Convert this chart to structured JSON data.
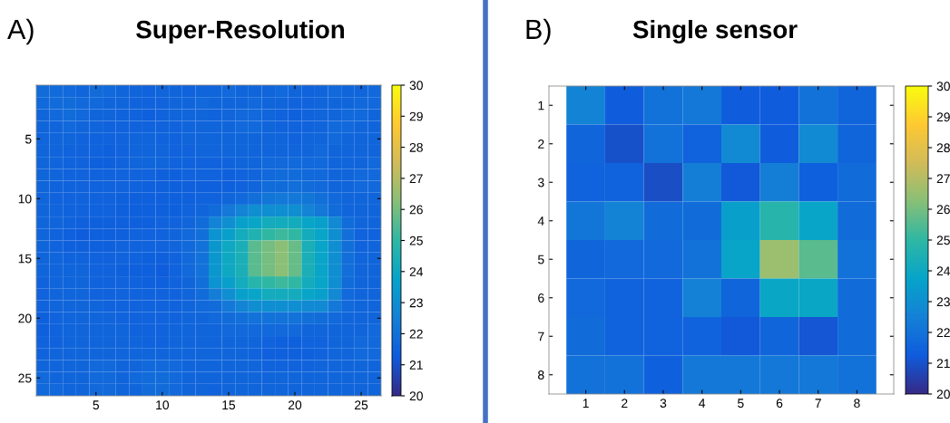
{
  "chart_data": [
    {
      "type": "heatmap",
      "title": "Super-Resolution",
      "annotations": [
        "A)"
      ],
      "xlim": [
        0.5,
        26.5
      ],
      "ylim": [
        26.5,
        0.5
      ],
      "xticks": [
        5,
        10,
        15,
        20,
        25
      ],
      "yticks": [
        5,
        10,
        15,
        20,
        25
      ],
      "clim": [
        20,
        30
      ],
      "cticks": [
        20,
        21,
        22,
        23,
        24,
        25,
        26,
        27,
        28,
        29,
        30
      ],
      "cells": [
        [
          21.8,
          21.8,
          21.7,
          21.6,
          21.8,
          21.7,
          21.6,
          21.6,
          21.5,
          21.6,
          21.6,
          21.5,
          21.6,
          21.6,
          21.7,
          21.6,
          21.6,
          21.6,
          21.7,
          21.6,
          21.5,
          21.6,
          21.7,
          21.6,
          21.6,
          21.7
        ],
        [
          21.7,
          21.8,
          21.8,
          21.7,
          21.7,
          21.6,
          21.6,
          21.5,
          21.5,
          21.5,
          21.6,
          21.6,
          21.7,
          21.6,
          21.6,
          21.6,
          21.7,
          21.6,
          21.6,
          21.5,
          21.5,
          21.6,
          21.6,
          21.6,
          21.7,
          21.7
        ],
        [
          21.6,
          21.7,
          21.8,
          21.7,
          21.6,
          21.6,
          21.5,
          21.5,
          21.4,
          21.5,
          21.6,
          21.6,
          21.6,
          21.5,
          21.6,
          21.7,
          21.7,
          21.6,
          21.5,
          21.4,
          21.5,
          21.6,
          21.6,
          21.7,
          21.7,
          21.6
        ],
        [
          21.6,
          21.6,
          21.7,
          21.6,
          21.6,
          21.5,
          21.5,
          21.5,
          21.5,
          21.5,
          21.5,
          21.6,
          21.6,
          21.6,
          21.6,
          21.7,
          21.7,
          21.6,
          21.5,
          21.5,
          21.5,
          21.6,
          21.7,
          21.7,
          21.6,
          21.6
        ],
        [
          21.6,
          21.6,
          21.6,
          21.5,
          21.5,
          21.5,
          21.5,
          21.6,
          21.6,
          21.5,
          21.5,
          21.6,
          21.6,
          21.6,
          21.6,
          21.6,
          21.6,
          21.6,
          21.6,
          21.5,
          21.6,
          21.6,
          21.7,
          21.6,
          21.6,
          21.6
        ],
        [
          21.6,
          21.6,
          21.5,
          21.5,
          21.5,
          21.4,
          21.5,
          21.6,
          21.6,
          21.6,
          21.5,
          21.5,
          21.6,
          21.6,
          21.6,
          21.6,
          21.6,
          21.6,
          21.6,
          21.6,
          21.6,
          21.7,
          21.6,
          21.6,
          21.6,
          21.6
        ],
        [
          21.6,
          21.6,
          21.5,
          21.5,
          21.4,
          21.4,
          21.5,
          21.6,
          21.6,
          21.6,
          21.5,
          21.5,
          21.5,
          21.5,
          21.5,
          21.6,
          21.6,
          21.7,
          21.7,
          21.7,
          21.7,
          21.7,
          21.6,
          21.6,
          21.6,
          21.7
        ],
        [
          21.6,
          21.6,
          21.5,
          21.5,
          21.5,
          21.5,
          21.5,
          21.5,
          21.5,
          21.4,
          21.4,
          21.5,
          21.5,
          21.5,
          21.4,
          21.5,
          21.6,
          21.7,
          21.8,
          21.8,
          21.7,
          21.7,
          21.6,
          21.6,
          21.7,
          21.7
        ],
        [
          21.6,
          21.5,
          21.5,
          21.5,
          21.5,
          21.5,
          21.5,
          21.5,
          21.4,
          21.4,
          21.4,
          21.4,
          21.4,
          21.4,
          21.4,
          21.5,
          21.6,
          21.8,
          21.8,
          21.9,
          21.8,
          21.7,
          21.6,
          21.6,
          21.7,
          21.7
        ],
        [
          21.6,
          21.5,
          21.5,
          21.5,
          21.5,
          21.5,
          21.4,
          21.4,
          21.4,
          21.4,
          21.4,
          21.4,
          21.5,
          21.5,
          21.6,
          21.7,
          21.9,
          22.1,
          22.2,
          22.2,
          22.1,
          21.9,
          21.7,
          21.6,
          21.6,
          21.6
        ],
        [
          21.6,
          21.6,
          21.5,
          21.5,
          21.5,
          21.5,
          21.4,
          21.4,
          21.4,
          21.4,
          21.4,
          21.5,
          21.6,
          21.8,
          22.2,
          22.6,
          23.0,
          23.0,
          23.0,
          23.0,
          22.6,
          22.2,
          21.8,
          21.6,
          21.6,
          21.6
        ],
        [
          21.6,
          21.6,
          21.5,
          21.4,
          21.4,
          21.4,
          21.4,
          21.4,
          21.4,
          21.5,
          21.5,
          21.6,
          21.8,
          22.6,
          23.0,
          23.6,
          23.8,
          24.2,
          24.2,
          24.2,
          23.8,
          23.6,
          22.8,
          21.8,
          21.6,
          21.6
        ],
        [
          21.6,
          21.5,
          21.4,
          21.3,
          21.4,
          21.4,
          21.4,
          21.5,
          21.5,
          21.5,
          21.6,
          21.7,
          21.9,
          23.2,
          23.6,
          24.2,
          24.6,
          25.0,
          25.2,
          25.0,
          24.2,
          23.8,
          23.0,
          21.9,
          21.5,
          21.5
        ],
        [
          21.6,
          21.5,
          21.4,
          21.4,
          21.4,
          21.4,
          21.5,
          21.5,
          21.5,
          21.5,
          21.6,
          21.7,
          22.0,
          23.3,
          24.0,
          24.4,
          25.6,
          26.0,
          26.3,
          25.8,
          24.4,
          23.8,
          23.0,
          21.9,
          21.5,
          21.6
        ],
        [
          21.6,
          21.6,
          21.5,
          21.5,
          21.5,
          21.5,
          21.5,
          21.5,
          21.4,
          21.4,
          21.5,
          21.7,
          22.0,
          23.3,
          24.0,
          24.4,
          25.6,
          26.0,
          26.3,
          25.8,
          24.4,
          23.8,
          23.0,
          21.9,
          21.6,
          21.6
        ],
        [
          21.6,
          21.6,
          21.6,
          21.6,
          21.5,
          21.5,
          21.4,
          21.4,
          21.4,
          21.3,
          21.5,
          21.7,
          22.0,
          23.3,
          24.0,
          24.4,
          25.6,
          26.0,
          26.3,
          25.8,
          24.4,
          23.8,
          23.0,
          21.9,
          21.6,
          21.6
        ],
        [
          21.5,
          21.6,
          21.6,
          21.6,
          21.5,
          21.5,
          21.5,
          21.5,
          21.4,
          21.4,
          21.5,
          21.6,
          21.9,
          23.2,
          23.6,
          24.2,
          24.8,
          25.0,
          25.2,
          25.0,
          24.2,
          23.8,
          23.0,
          21.8,
          21.6,
          21.6
        ],
        [
          21.5,
          21.6,
          21.6,
          21.6,
          21.5,
          21.5,
          21.5,
          21.5,
          21.5,
          21.5,
          21.5,
          21.6,
          21.8,
          22.4,
          23.0,
          23.6,
          23.8,
          24.2,
          24.2,
          24.2,
          23.8,
          23.6,
          22.8,
          21.7,
          21.6,
          21.6
        ],
        [
          21.5,
          21.6,
          21.6,
          21.6,
          21.6,
          21.5,
          21.5,
          21.5,
          21.5,
          21.5,
          21.5,
          21.6,
          21.7,
          21.8,
          22.2,
          22.6,
          23.0,
          23.0,
          23.0,
          23.0,
          22.8,
          22.8,
          22.2,
          21.7,
          21.6,
          21.6
        ],
        [
          21.4,
          21.5,
          21.6,
          21.6,
          21.6,
          21.6,
          21.5,
          21.5,
          21.5,
          21.5,
          21.5,
          21.6,
          21.6,
          21.7,
          21.8,
          21.9,
          22.0,
          22.0,
          22.0,
          22.0,
          21.9,
          21.8,
          21.7,
          21.6,
          21.6,
          21.6
        ],
        [
          21.4,
          21.5,
          21.6,
          21.6,
          21.6,
          21.6,
          21.6,
          21.5,
          21.5,
          21.5,
          21.6,
          21.6,
          21.6,
          21.6,
          21.7,
          21.7,
          21.7,
          21.7,
          21.7,
          21.7,
          21.6,
          21.6,
          21.6,
          21.6,
          21.6,
          21.7
        ],
        [
          21.5,
          21.5,
          21.6,
          21.6,
          21.6,
          21.6,
          21.6,
          21.6,
          21.5,
          21.5,
          21.6,
          21.6,
          21.6,
          21.6,
          21.6,
          21.6,
          21.6,
          21.5,
          21.4,
          21.4,
          21.5,
          21.5,
          21.6,
          21.6,
          21.7,
          21.7
        ],
        [
          21.5,
          21.6,
          21.6,
          21.6,
          21.6,
          21.6,
          21.6,
          21.6,
          21.6,
          21.6,
          21.6,
          21.6,
          21.6,
          21.6,
          21.6,
          21.6,
          21.5,
          21.4,
          21.4,
          21.4,
          21.4,
          21.5,
          21.6,
          21.6,
          21.7,
          21.7
        ],
        [
          21.6,
          21.6,
          21.6,
          21.6,
          21.7,
          21.7,
          21.6,
          21.6,
          21.7,
          21.7,
          21.7,
          21.6,
          21.6,
          21.6,
          21.6,
          21.6,
          21.6,
          21.5,
          21.5,
          21.5,
          21.5,
          21.6,
          21.6,
          21.6,
          21.6,
          21.6
        ],
        [
          21.7,
          21.6,
          21.6,
          21.6,
          21.7,
          21.7,
          21.6,
          21.7,
          21.8,
          21.8,
          21.7,
          21.6,
          21.6,
          21.6,
          21.6,
          21.6,
          21.6,
          21.6,
          21.6,
          21.6,
          21.6,
          21.6,
          21.6,
          21.6,
          21.6,
          21.6
        ],
        [
          21.7,
          21.7,
          21.6,
          21.6,
          21.7,
          21.7,
          21.6,
          21.6,
          21.8,
          21.8,
          21.7,
          21.6,
          21.6,
          21.5,
          21.6,
          21.6,
          21.6,
          21.6,
          21.6,
          21.6,
          21.6,
          21.6,
          21.6,
          21.6,
          21.6,
          21.6
        ]
      ]
    },
    {
      "type": "heatmap",
      "title": "Single sensor",
      "annotations": [
        "B)"
      ],
      "xlim": [
        0.05,
        8.95
      ],
      "ylim": [
        8.5,
        0.5
      ],
      "xticks": [
        1,
        2,
        3,
        4,
        5,
        6,
        7,
        8
      ],
      "yticks": [
        1,
        2,
        3,
        4,
        5,
        6,
        7,
        8
      ],
      "clim": [
        20,
        30
      ],
      "cticks": [
        20,
        21,
        22,
        23,
        24,
        25,
        26,
        27,
        28,
        29,
        30
      ],
      "cells": [
        [
          22.6,
          21.3,
          22.0,
          22.2,
          21.3,
          21.3,
          22.0,
          21.6
        ],
        [
          21.6,
          21.0,
          22.0,
          21.5,
          22.8,
          21.3,
          22.8,
          21.6
        ],
        [
          21.5,
          21.5,
          20.9,
          22.4,
          21.2,
          22.4,
          21.4,
          21.8
        ],
        [
          22.1,
          22.6,
          21.8,
          21.8,
          23.6,
          24.8,
          23.8,
          21.8
        ],
        [
          21.6,
          21.7,
          21.7,
          22.0,
          23.8,
          26.6,
          25.6,
          22.0
        ],
        [
          21.7,
          21.5,
          21.5,
          22.5,
          21.6,
          23.9,
          23.9,
          21.8
        ],
        [
          21.8,
          21.5,
          21.5,
          21.5,
          21.2,
          21.6,
          21.1,
          21.8
        ],
        [
          22.0,
          22.0,
          21.4,
          22.2,
          22.2,
          22.2,
          22.2,
          22.0
        ]
      ]
    }
  ]
}
